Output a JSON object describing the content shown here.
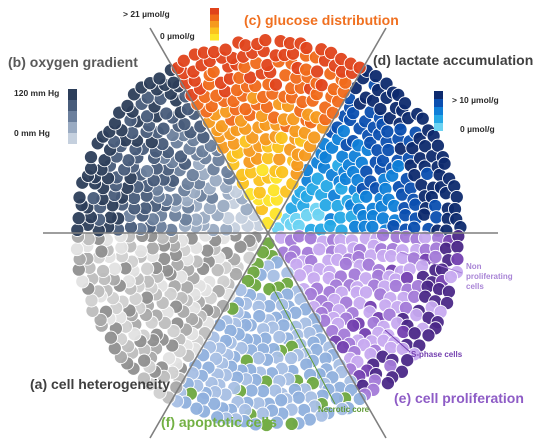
{
  "panels": {
    "oxygen": {
      "title": "(b) oxygen gradient",
      "scale_high": "120 mm Hg",
      "scale_low": "0 mm Hg",
      "title_color": "#595959",
      "colors": [
        "#2c3e5a",
        "#485c7a",
        "#6b7f9c",
        "#9aabc2",
        "#c5d0de"
      ]
    },
    "glucose": {
      "title": "(c) glucose distribution",
      "scale_high": "> 21 µmol/g",
      "scale_low": "0 µmol/g",
      "title_color": "#f07020",
      "colors": [
        "#e0431b",
        "#f06a1a",
        "#f59a1e",
        "#fbc21e",
        "#fde428"
      ]
    },
    "lactate": {
      "title": "(d) lactate accumulation",
      "scale_high": "> 10 µmol/g",
      "scale_low": "0 µmol/g",
      "title_color": "#404040",
      "colors": [
        "#0d2a6e",
        "#0b4fb0",
        "#0f7fd8",
        "#25a8e6",
        "#6cd3f2"
      ]
    },
    "heterogeneity": {
      "title": "(a) cell heterogeneity",
      "title_color": "#404040",
      "colors": [
        "#8f8f8f",
        "#a9a9a9",
        "#bdbdbd",
        "#d0d0d0",
        "#e2e2e2"
      ]
    },
    "proliferation": {
      "title": "(e) cell proliferation",
      "title_color": "#8e5cc6",
      "non_proliferating": "Non proliferating cells",
      "s_phase": "S-phase cells",
      "colors": [
        "#4b2888",
        "#7440b0",
        "#a37ad8",
        "#c7aaf0"
      ]
    },
    "apoptotic": {
      "title": "(f) apoptotic cells",
      "title_color": "#72b043",
      "necrotic_core": "Necrotic core",
      "colors": [
        "#6ea83f",
        "#8fb0dd",
        "#a7bfe4"
      ]
    }
  },
  "non_proliferating_lines": [
    "Non",
    "proliferating",
    "cells"
  ],
  "divider_color": "#7f7f7f"
}
